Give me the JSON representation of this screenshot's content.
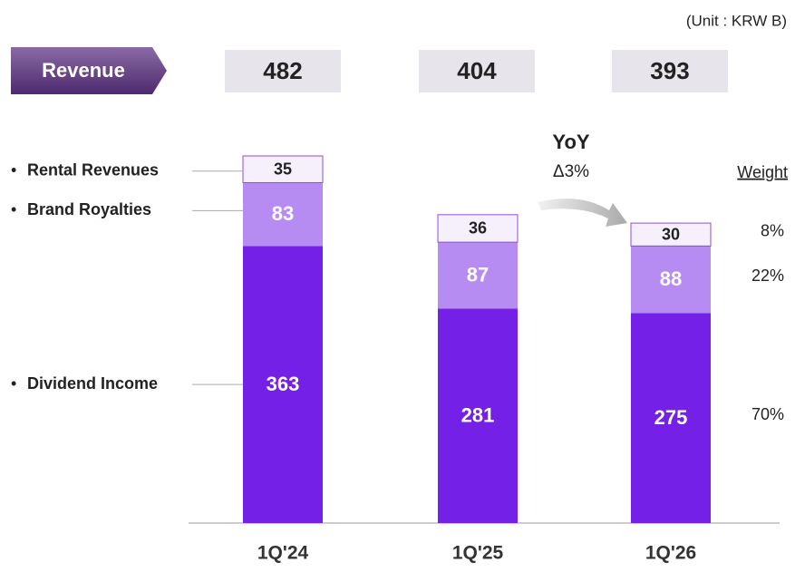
{
  "chart_data": {
    "type": "stacked_bar",
    "unit": "(Unit : KRW B)",
    "categories": [
      "1Q'24",
      "1Q'25",
      "1Q'26"
    ],
    "totals": {
      "label": "Revenue",
      "values": [
        482,
        404,
        393
      ]
    },
    "series": [
      {
        "name": "Dividend Income",
        "color": "#7420e6",
        "text_color": "#ffffff",
        "values": [
          363,
          281,
          275
        ]
      },
      {
        "name": "Brand Royalties",
        "color": "#b78cf2",
        "text_color": "#ffffff",
        "values": [
          83,
          87,
          88
        ]
      },
      {
        "name": "Rental Revenues",
        "color": "#f6f0fd",
        "text_color": "#222222",
        "values": [
          35,
          36,
          30
        ]
      }
    ],
    "annotation": {
      "title": "YoY",
      "text": "Δ3%"
    },
    "weights": {
      "title": "Weight",
      "values": [
        "70%",
        "22%",
        "8%"
      ]
    }
  }
}
